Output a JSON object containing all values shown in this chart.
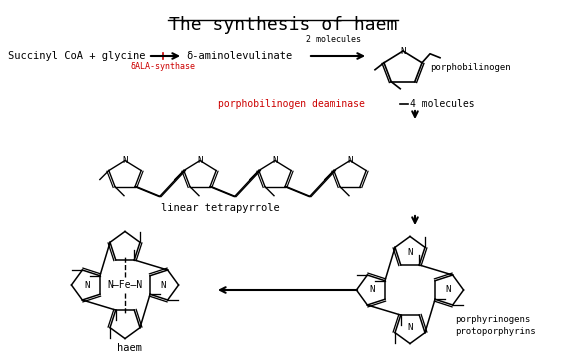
{
  "title": "The synthesis of haem",
  "title_fontsize": 13,
  "bg_color": "#ffffff",
  "text_color": "#000000",
  "red_color": "#cc0000",
  "font_family": "monospace",
  "labels": {
    "succinyl": "Succinyl CoA + glycine",
    "aminolevulinate": "δ-aminolevulinate",
    "ala_synthase": "δALA-synthase",
    "2molecules": "2 molecules",
    "porphobilinogen": "porphobilinogen",
    "pbg_deaminase": "porphobilinogen deaminase",
    "4molecules": "4 molecules",
    "linear_tetrapyrrole": "linear tetrapyrrole",
    "porphyrinogens": "porphyrinogens",
    "protoporphyrins": "protoporphyrins",
    "haem": "haem"
  }
}
